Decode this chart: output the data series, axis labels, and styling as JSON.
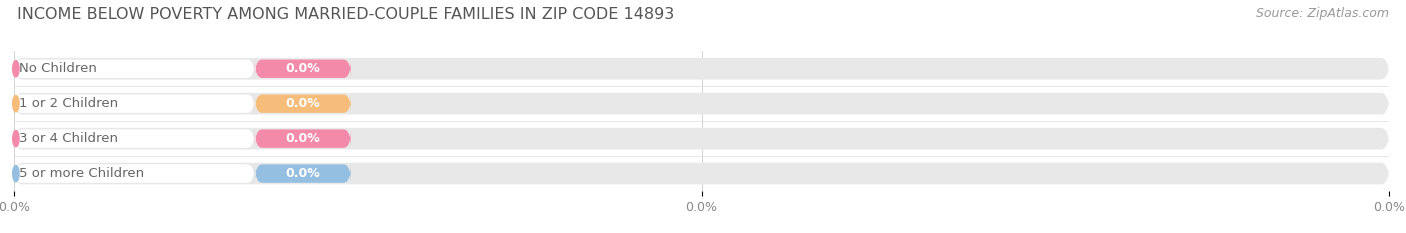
{
  "title": "INCOME BELOW POVERTY AMONG MARRIED-COUPLE FAMILIES IN ZIP CODE 14893",
  "source": "Source: ZipAtlas.com",
  "categories": [
    "No Children",
    "1 or 2 Children",
    "3 or 4 Children",
    "5 or more Children"
  ],
  "values": [
    0.0,
    0.0,
    0.0,
    0.0
  ],
  "bar_colors": [
    "#f48aaa",
    "#f5bc7a",
    "#f48aaa",
    "#95bfe0"
  ],
  "bar_bg_color": "#e8e8e8",
  "label_color": "#666666",
  "value_label_color": "#ffffff",
  "title_color": "#555555",
  "source_color": "#999999",
  "background_color": "#ffffff",
  "bar_height": 0.62,
  "title_fontsize": 11.5,
  "label_fontsize": 9.5,
  "value_fontsize": 9,
  "tick_fontsize": 9,
  "source_fontsize": 9,
  "tick_label": "0.0%"
}
